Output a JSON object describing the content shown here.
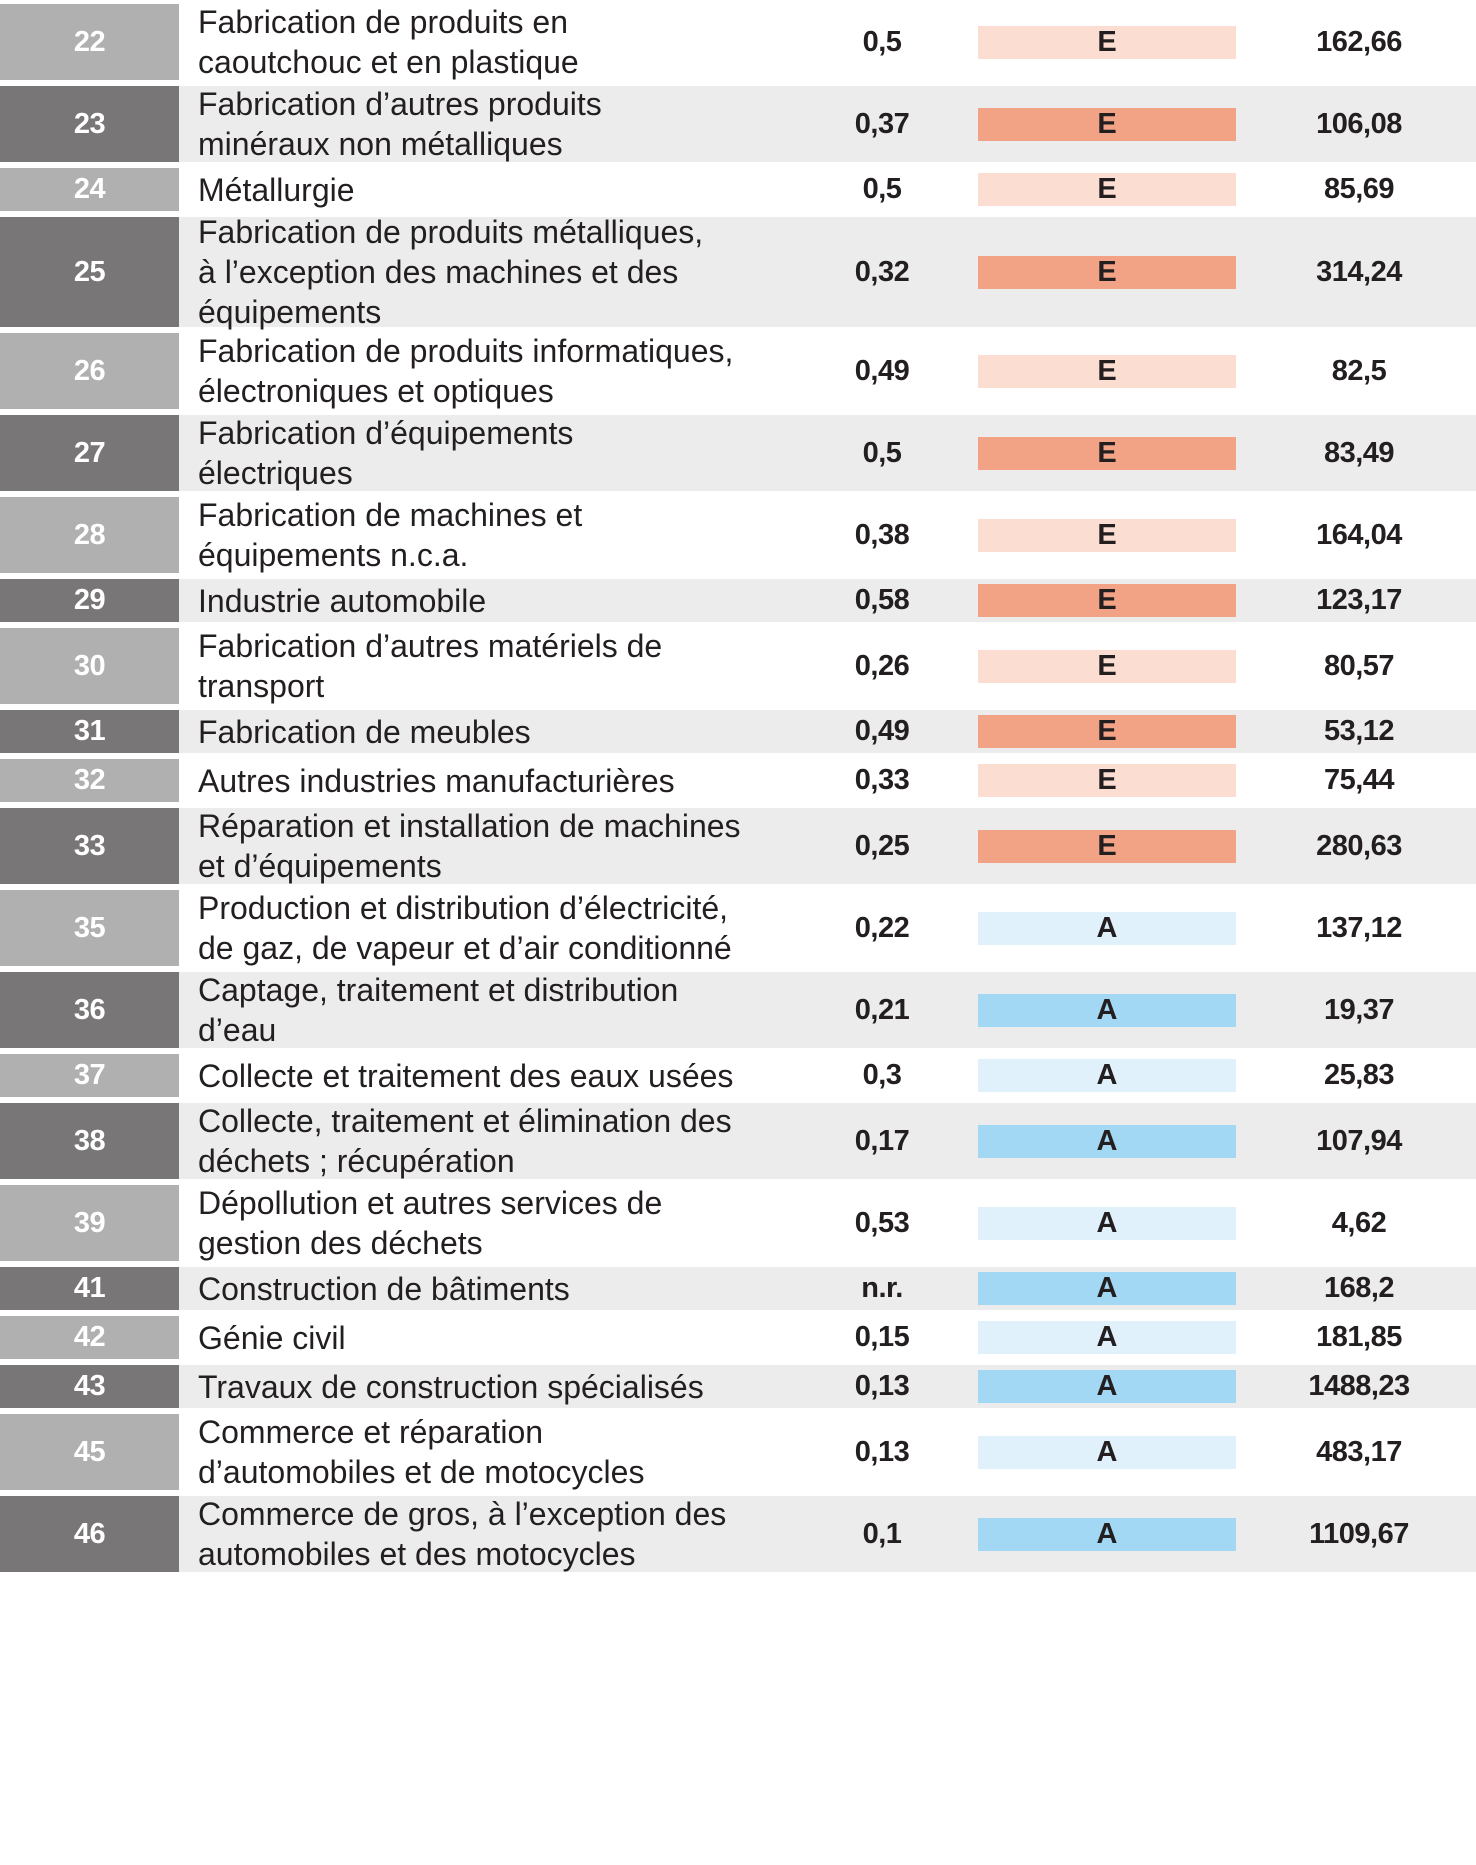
{
  "colors": {
    "code_light": "#b1b0b1",
    "code_dark": "#787677",
    "row_light": "#ffffff",
    "row_dark": "#ececec",
    "grade_E_light": "#fcddd1",
    "grade_E_dark": "#f3a385",
    "grade_A_light": "#e1f1fc",
    "grade_A_dark": "#a3d8f5"
  },
  "rows": [
    {
      "code": "22",
      "label": [
        "Fabrication de produits en",
        "caoutchouc et en plastique"
      ],
      "value": "0,5",
      "grade": "E",
      "total": "162,66",
      "shade": "light"
    },
    {
      "code": "23",
      "label": [
        "Fabrication d’autres produits",
        "minéraux non métalliques"
      ],
      "value": "0,37",
      "grade": "E",
      "total": "106,08",
      "shade": "dark"
    },
    {
      "code": "24",
      "label": [
        "Métallurgie"
      ],
      "value": "0,5",
      "grade": "E",
      "total": "85,69",
      "shade": "light"
    },
    {
      "code": "25",
      "label": [
        "Fabrication de produits métalliques,",
        "à l’exception des machines et des",
        "équipements"
      ],
      "value": "0,32",
      "grade": "E",
      "total": "314,24",
      "shade": "dark"
    },
    {
      "code": "26",
      "label": [
        "Fabrication de produits informatiques,",
        "électroniques et optiques"
      ],
      "value": "0,49",
      "grade": "E",
      "total": "82,5",
      "shade": "light"
    },
    {
      "code": "27",
      "label": [
        "Fabrication d’équipements",
        "électriques"
      ],
      "value": "0,5",
      "grade": "E",
      "total": "83,49",
      "shade": "dark"
    },
    {
      "code": "28",
      "label": [
        "Fabrication de machines et",
        "équipements n.c.a."
      ],
      "value": "0,38",
      "grade": "E",
      "total": "164,04",
      "shade": "light"
    },
    {
      "code": "29",
      "label": [
        "Industrie automobile"
      ],
      "value": "0,58",
      "grade": "E",
      "total": "123,17",
      "shade": "dark"
    },
    {
      "code": "30",
      "label": [
        "Fabrication d’autres matériels de",
        "transport"
      ],
      "value": "0,26",
      "grade": "E",
      "total": "80,57",
      "shade": "light"
    },
    {
      "code": "31",
      "label": [
        "Fabrication de meubles"
      ],
      "value": "0,49",
      "grade": "E",
      "total": "53,12",
      "shade": "dark"
    },
    {
      "code": "32",
      "label": [
        "Autres industries manufacturières"
      ],
      "value": "0,33",
      "grade": "E",
      "total": "75,44",
      "shade": "light"
    },
    {
      "code": "33",
      "label": [
        "Réparation et installation de machines",
        "et d’équipements"
      ],
      "value": "0,25",
      "grade": "E",
      "total": "280,63",
      "shade": "dark"
    },
    {
      "code": "35",
      "label": [
        "Production et distribution d’électricité,",
        "de gaz, de vapeur et d’air conditionné"
      ],
      "value": "0,22",
      "grade": "A",
      "total": "137,12",
      "shade": "light"
    },
    {
      "code": "36",
      "label": [
        "Captage, traitement et distribution",
        "d’eau"
      ],
      "value": "0,21",
      "grade": "A",
      "total": "19,37",
      "shade": "dark"
    },
    {
      "code": "37",
      "label": [
        "Collecte et traitement des eaux usées"
      ],
      "value": "0,3",
      "grade": "A",
      "total": "25,83",
      "shade": "light"
    },
    {
      "code": "38",
      "label": [
        "Collecte, traitement et élimination des",
        "déchets ; récupération"
      ],
      "value": "0,17",
      "grade": "A",
      "total": "107,94",
      "shade": "dark"
    },
    {
      "code": "39",
      "label": [
        "Dépollution et autres services de",
        "gestion des déchets"
      ],
      "value": "0,53",
      "grade": "A",
      "total": "4,62",
      "shade": "light"
    },
    {
      "code": "41",
      "label": [
        "Construction de bâtiments"
      ],
      "value": "n.r.",
      "grade": "A",
      "total": "168,2",
      "shade": "dark"
    },
    {
      "code": "42",
      "label": [
        "Génie civil"
      ],
      "value": "0,15",
      "grade": "A",
      "total": "181,85",
      "shade": "light"
    },
    {
      "code": "43",
      "label": [
        "Travaux de construction spécialisés"
      ],
      "value": "0,13",
      "grade": "A",
      "total": "1488,23",
      "shade": "dark"
    },
    {
      "code": "45",
      "label": [
        "Commerce et réparation",
        "d’automobiles et de motocycles"
      ],
      "value": "0,13",
      "grade": "A",
      "total": "483,17",
      "shade": "light"
    },
    {
      "code": "46",
      "label": [
        "Commerce de gros, à l’exception des",
        "automobiles et des motocycles"
      ],
      "value": "0,1",
      "grade": "A",
      "total": "1109,67",
      "shade": "dark"
    }
  ]
}
